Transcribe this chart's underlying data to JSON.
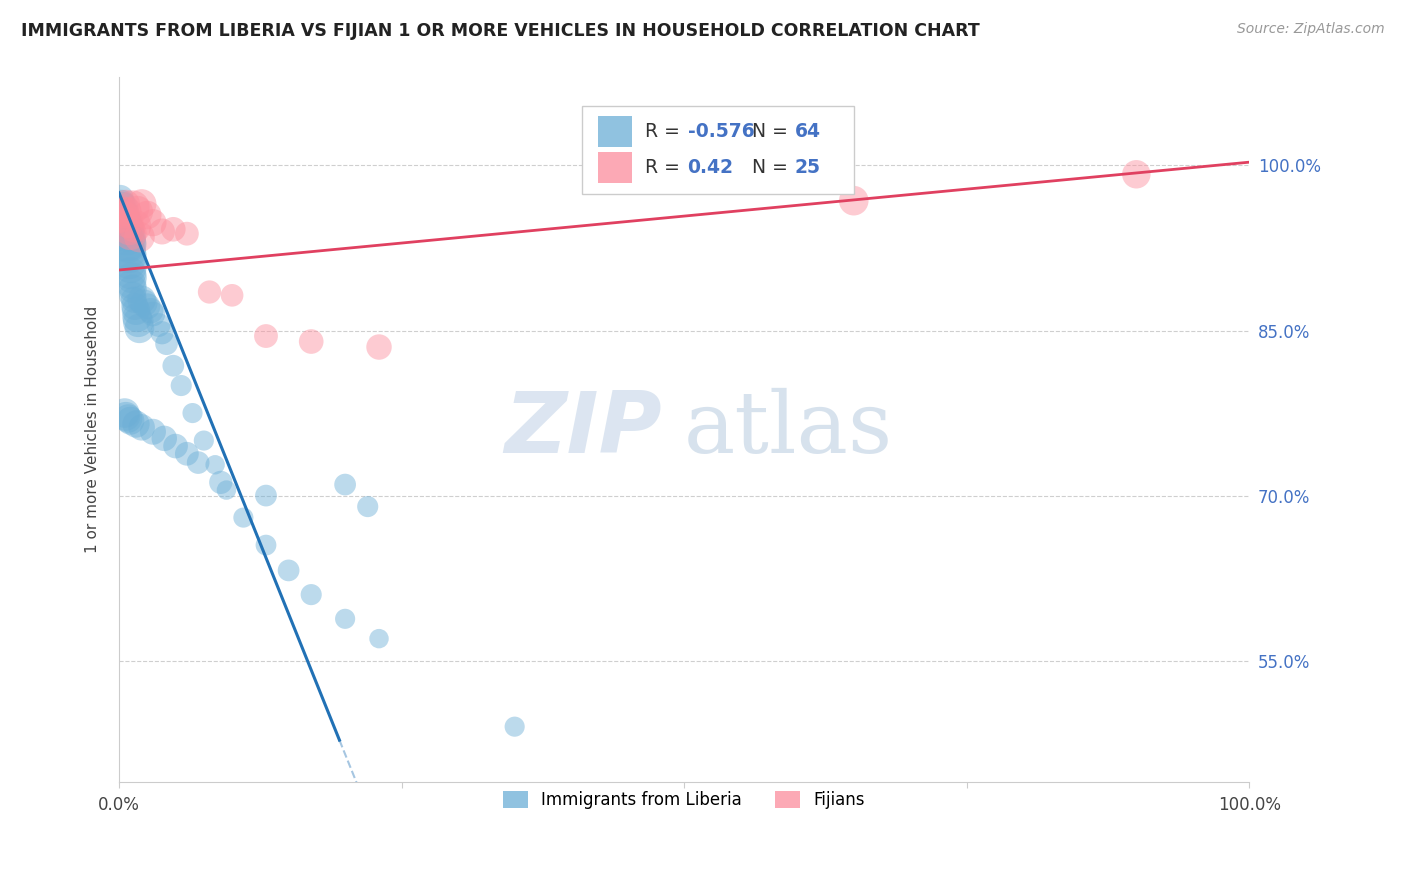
{
  "title": "IMMIGRANTS FROM LIBERIA VS FIJIAN 1 OR MORE VEHICLES IN HOUSEHOLD CORRELATION CHART",
  "source": "Source: ZipAtlas.com",
  "ylabel": "1 or more Vehicles in Household",
  "ytick_labels": [
    "55.0%",
    "70.0%",
    "85.0%",
    "100.0%"
  ],
  "ytick_values": [
    0.55,
    0.7,
    0.85,
    1.0
  ],
  "xtick_labels": [
    "0.0%",
    "100.0%"
  ],
  "xtick_values": [
    0.0,
    1.0
  ],
  "legend_label1": "Immigrants from Liberia",
  "legend_label2": "Fijians",
  "R_blue": -0.576,
  "N_blue": 64,
  "R_pink": 0.42,
  "N_pink": 25,
  "blue_color": "#6baed6",
  "blue_line_color": "#2171b5",
  "pink_color": "#fc8d9c",
  "pink_line_color": "#e04060",
  "number_color": "#4472c4",
  "watermark_zip": "ZIP",
  "watermark_atlas": "atlas",
  "blue_line_x0": 0.0,
  "blue_line_y0": 0.975,
  "blue_line_slope": -2.55,
  "blue_line_solid_end_x": 0.195,
  "pink_line_x0": 0.0,
  "pink_line_y0": 0.905,
  "pink_line_slope": 0.098,
  "xlim": [
    0.0,
    1.0
  ],
  "ylim": [
    0.44,
    1.08
  ],
  "blue_points_x": [
    0.001,
    0.002,
    0.003,
    0.003,
    0.004,
    0.004,
    0.005,
    0.005,
    0.006,
    0.006,
    0.007,
    0.007,
    0.008,
    0.008,
    0.009,
    0.009,
    0.01,
    0.01,
    0.011,
    0.011,
    0.012,
    0.012,
    0.013,
    0.014,
    0.015,
    0.016,
    0.017,
    0.018,
    0.02,
    0.022,
    0.025,
    0.028,
    0.03,
    0.035,
    0.038,
    0.042,
    0.048,
    0.055,
    0.065,
    0.075,
    0.085,
    0.095,
    0.11,
    0.13,
    0.15,
    0.17,
    0.2,
    0.23,
    0.2,
    0.22,
    0.07,
    0.09,
    0.06,
    0.05,
    0.04,
    0.03,
    0.02,
    0.015,
    0.01,
    0.008,
    0.006,
    0.005,
    0.13,
    0.35
  ],
  "blue_points_y": [
    0.97,
    0.965,
    0.962,
    0.958,
    0.955,
    0.95,
    0.948,
    0.944,
    0.942,
    0.938,
    0.935,
    0.93,
    0.928,
    0.922,
    0.918,
    0.912,
    0.908,
    0.902,
    0.898,
    0.892,
    0.888,
    0.882,
    0.878,
    0.872,
    0.868,
    0.862,
    0.858,
    0.852,
    0.878,
    0.875,
    0.872,
    0.868,
    0.865,
    0.855,
    0.848,
    0.838,
    0.818,
    0.8,
    0.775,
    0.75,
    0.728,
    0.705,
    0.68,
    0.655,
    0.632,
    0.61,
    0.588,
    0.57,
    0.71,
    0.69,
    0.73,
    0.712,
    0.738,
    0.745,
    0.752,
    0.758,
    0.762,
    0.765,
    0.768,
    0.77,
    0.772,
    0.775,
    0.7,
    0.49
  ],
  "blue_points_size": [
    55,
    60,
    70,
    65,
    75,
    80,
    85,
    90,
    95,
    100,
    105,
    110,
    100,
    95,
    90,
    85,
    80,
    75,
    70,
    65,
    60,
    55,
    50,
    55,
    60,
    65,
    70,
    65,
    60,
    55,
    50,
    48,
    45,
    42,
    40,
    38,
    35,
    33,
    30,
    30,
    28,
    28,
    30,
    32,
    35,
    33,
    30,
    28,
    35,
    33,
    38,
    40,
    42,
    45,
    48,
    50,
    52,
    55,
    58,
    60,
    62,
    65,
    35,
    30
  ],
  "pink_points_x": [
    0.002,
    0.004,
    0.005,
    0.006,
    0.007,
    0.008,
    0.009,
    0.01,
    0.012,
    0.014,
    0.016,
    0.018,
    0.02,
    0.025,
    0.03,
    0.038,
    0.048,
    0.06,
    0.08,
    0.1,
    0.13,
    0.17,
    0.23,
    0.65,
    0.9
  ],
  "pink_points_y": [
    0.95,
    0.96,
    0.955,
    0.965,
    0.958,
    0.948,
    0.942,
    0.938,
    0.962,
    0.945,
    0.958,
    0.935,
    0.965,
    0.955,
    0.948,
    0.94,
    0.942,
    0.938,
    0.885,
    0.882,
    0.845,
    0.84,
    0.835,
    0.968,
    0.992
  ],
  "pink_points_size": [
    45,
    50,
    55,
    60,
    65,
    70,
    75,
    80,
    85,
    80,
    75,
    70,
    65,
    60,
    55,
    50,
    45,
    42,
    40,
    38,
    42,
    45,
    48,
    65,
    60
  ]
}
